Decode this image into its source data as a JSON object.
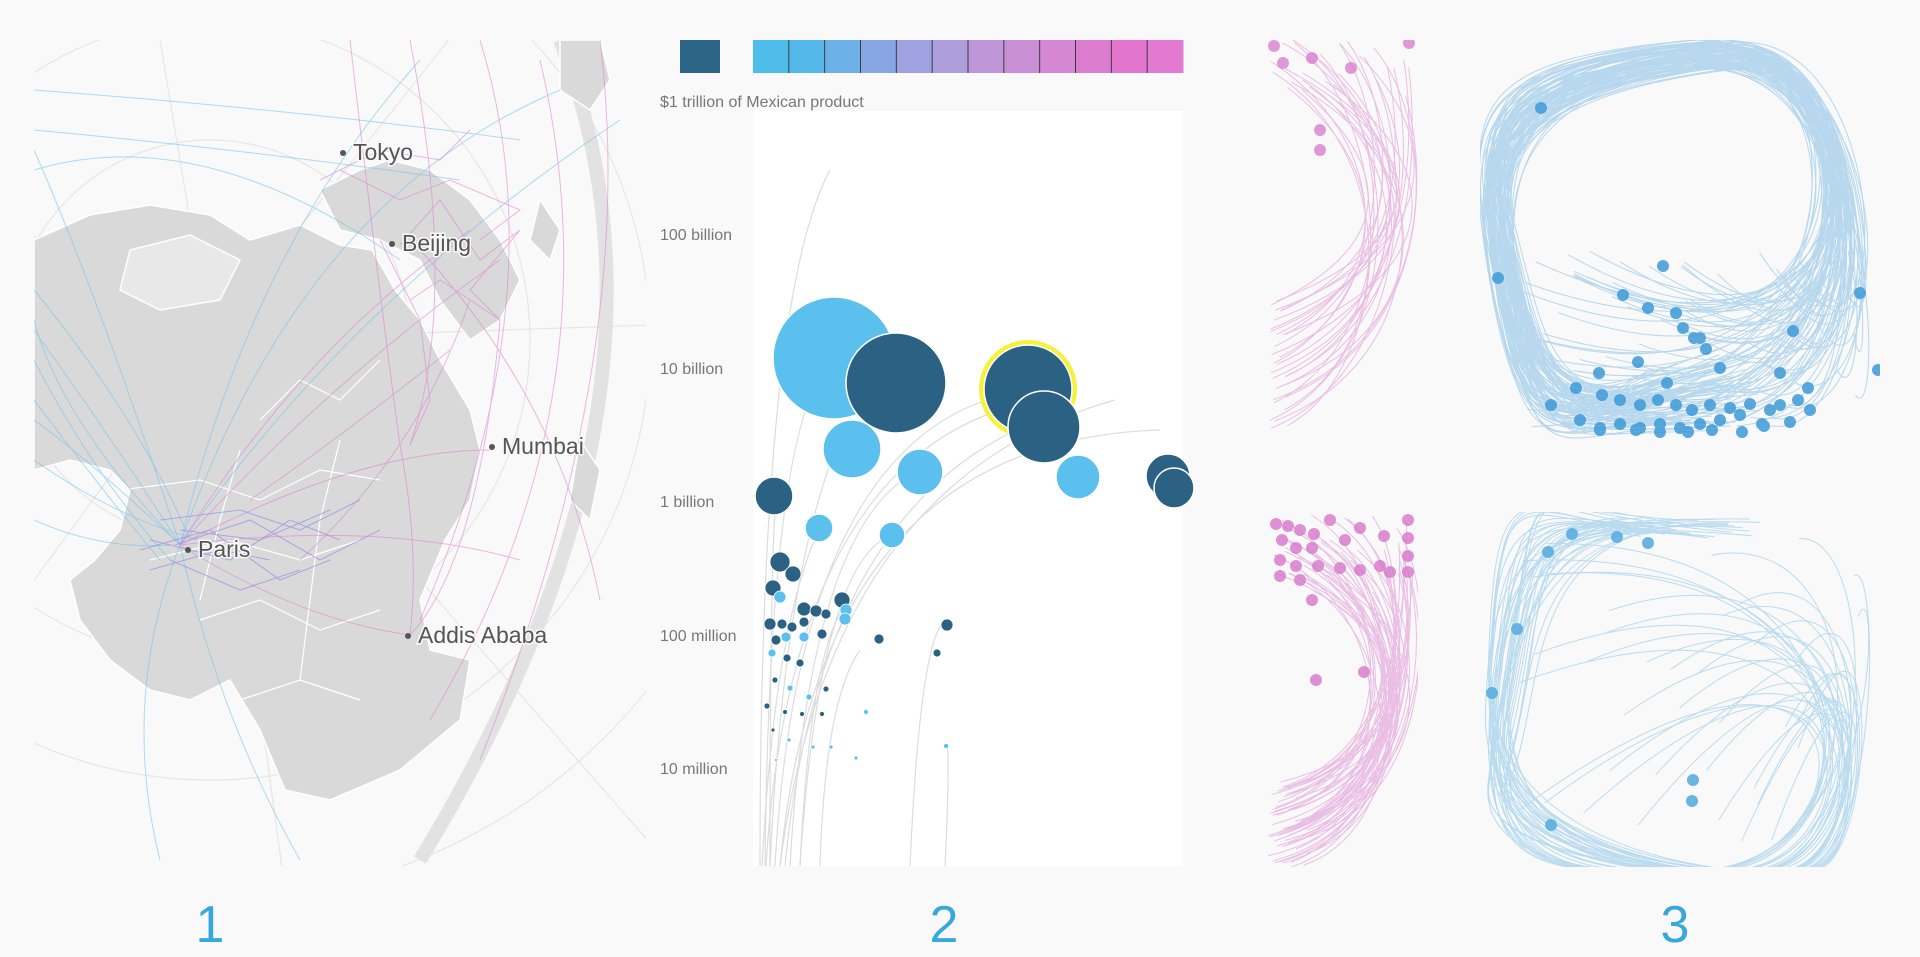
{
  "panels": [
    {
      "number": "1",
      "map_labels": [
        "Tokyo",
        "Beijing",
        "Mumbai",
        "Paris",
        "Addis Ababa"
      ],
      "colors": {
        "land": "#d9d9d9",
        "borders": "#ffffff",
        "flows_blue": "#6fc0ec",
        "flows_pink": "#dc7fd0",
        "flows_purple": "#8f86e2"
      }
    },
    {
      "number": "2",
      "legend": {
        "swatch_color": "#2c6585",
        "scale_colors": [
          "#4fbde9",
          "#55b8ea",
          "#6cb0e8",
          "#86a7e4",
          "#9ea2e1",
          "#ae9fdc",
          "#bf97d9",
          "#c98fd4",
          "#d487d2",
          "#db7ccf",
          "#e276cf",
          "#e27ad2"
        ]
      },
      "top_label": "$1 trillion of Mexican product",
      "axis_labels": [
        "100 billion",
        "10 billion",
        "1 billion",
        "100 million",
        "10 million"
      ],
      "colors": {
        "light": "#5bc0ee",
        "dark": "#2b6283",
        "highlight": "#f6f23a"
      }
    },
    {
      "number": "3",
      "colors": {
        "pink": "#d877cc",
        "blue": "#3e9bd8",
        "blue_light": "#7cbfe6"
      }
    }
  ]
}
